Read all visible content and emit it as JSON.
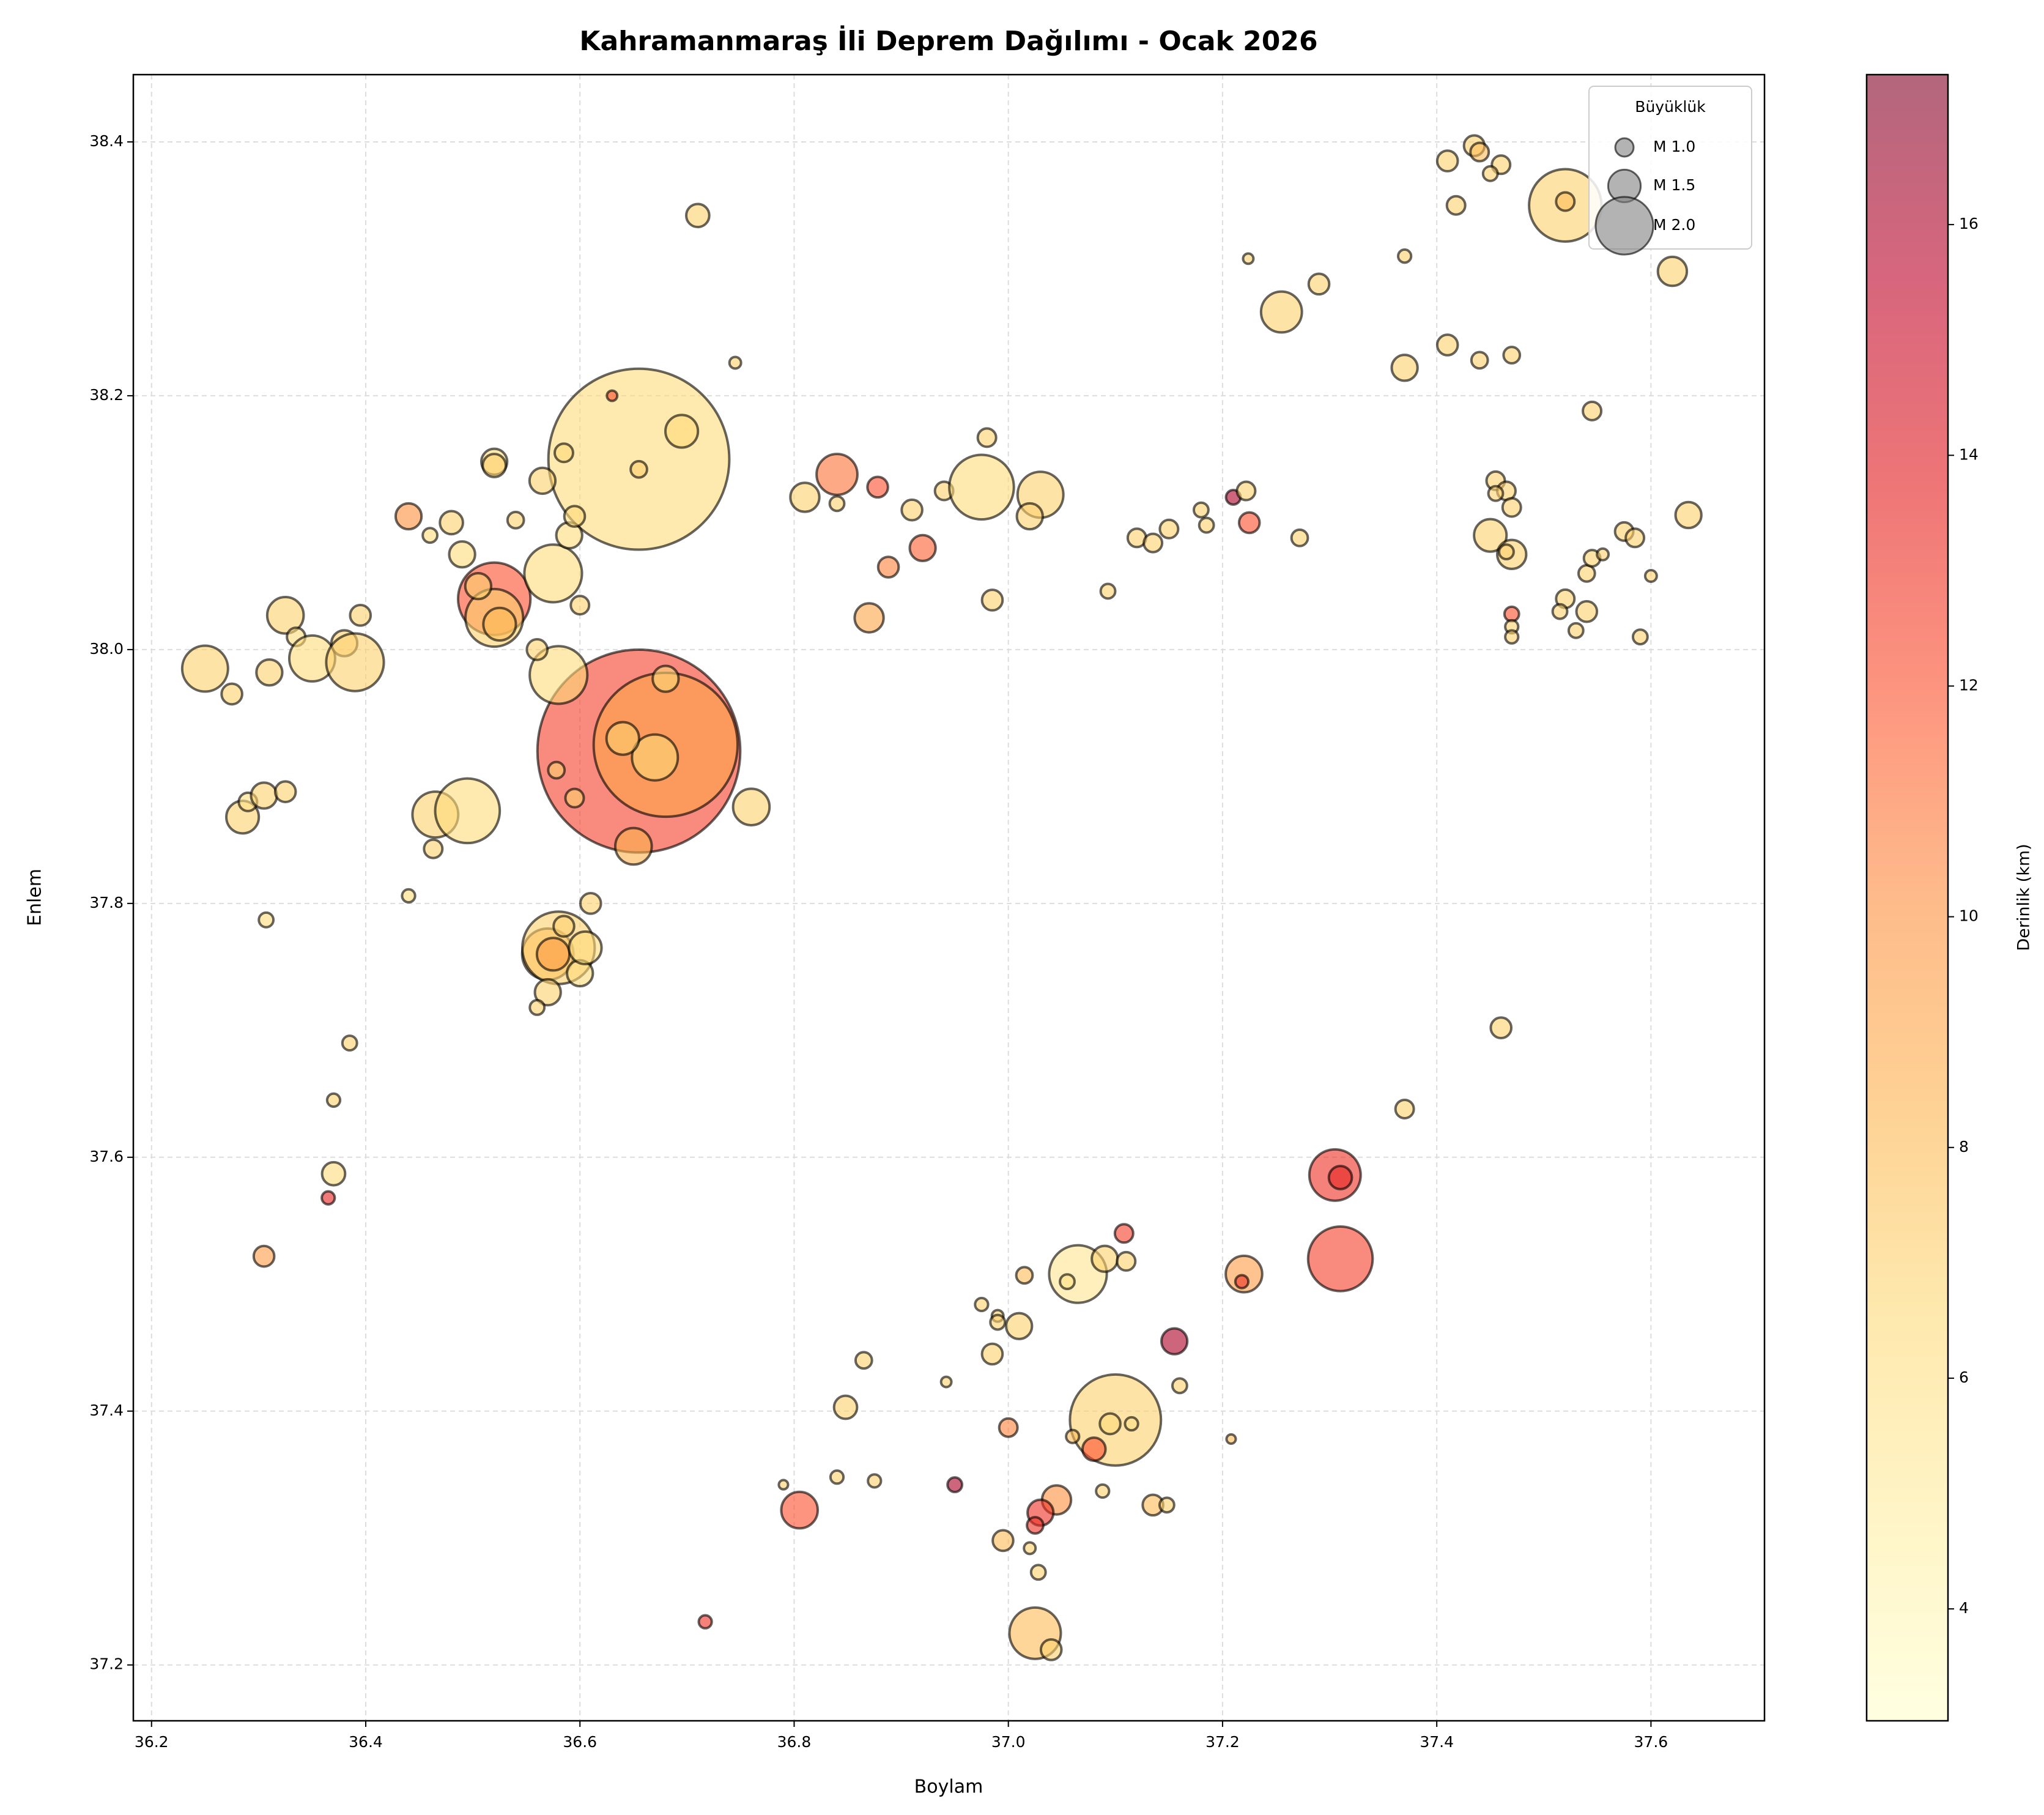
{
  "chart_data": {
    "type": "scatter",
    "title": "Kahramanmaraş İli Deprem Dağılımı - Ocak 2026",
    "xlabel": "Boylam",
    "ylabel": "Enlem",
    "xlim": [
      36.183,
      37.706
    ],
    "ylim": [
      37.156,
      38.453
    ],
    "xticks": [
      36.2,
      36.4,
      36.6,
      36.8,
      {
        "value": 37,
        "label": "37.0"
      },
      37.2,
      37.4,
      37.6
    ],
    "yticks": [
      37.2,
      37.4,
      37.6,
      37.8,
      {
        "value": 38,
        "label": "38.0"
      },
      38.2,
      38.4
    ],
    "grid": true,
    "x": [
      36.655,
      36.655,
      36.68,
      36.67,
      36.64,
      36.68,
      36.65,
      36.52,
      36.52,
      36.525,
      36.505,
      36.58,
      36.575,
      36.49,
      36.44,
      36.48,
      36.52,
      36.52,
      36.565,
      36.585,
      36.59,
      36.595,
      36.6,
      36.56,
      36.46,
      36.54,
      36.25,
      36.275,
      36.31,
      36.325,
      36.335,
      36.35,
      36.38,
      36.39,
      36.395,
      36.285,
      36.29,
      36.305,
      36.325,
      36.465,
      36.495,
      36.463,
      36.578,
      36.595,
      36.76,
      36.44,
      36.307,
      36.57,
      36.58,
      36.575,
      36.6,
      36.57,
      36.56,
      36.61,
      36.605,
      36.585,
      36.385,
      36.37,
      36.37,
      36.365,
      36.305,
      36.71,
      36.745,
      36.695,
      36.655,
      36.63,
      36.81,
      36.84,
      36.84,
      36.878,
      36.91,
      36.92,
      36.888,
      36.87,
      36.94,
      36.975,
      36.98,
      37.03,
      37.02,
      36.985,
      37.093,
      37.12,
      37.135,
      37.15,
      37.18,
      37.185,
      37.21,
      37.222,
      37.225,
      37.272,
      37.224,
      37.255,
      37.29,
      37.37,
      37.37,
      37.41,
      37.44,
      37.47,
      37.41,
      37.435,
      37.44,
      37.46,
      37.45,
      37.418,
      37.52,
      37.52,
      37.62,
      37.545,
      37.455,
      37.465,
      37.47,
      37.455,
      37.45,
      37.47,
      37.465,
      37.47,
      37.47,
      37.47,
      37.52,
      37.515,
      37.54,
      37.53,
      37.54,
      37.545,
      37.555,
      37.575,
      37.585,
      37.635,
      37.6,
      37.59,
      37.46,
      37.37,
      37.305,
      37.31,
      37.31,
      37.22,
      37.218,
      37.108,
      37.065,
      37.09,
      37.11,
      37.055,
      37.015,
      36.975,
      36.99,
      36.99,
      37.01,
      36.985,
      37.155,
      37.16,
      37.1,
      37.095,
      37.115,
      37.08,
      37.06,
      37.0,
      36.942,
      36.865,
      36.848,
      36.84,
      36.875,
      36.79,
      36.805,
      36.95,
      37.045,
      37.03,
      37.025,
      37.088,
      37.135,
      37.148,
      36.995,
      37.02,
      37.028,
      37.025,
      37.04,
      36.717,
      37.208
    ],
    "y": [
      38.15,
      37.92,
      37.925,
      37.915,
      37.93,
      37.977,
      37.845,
      38.04,
      38.025,
      38.02,
      38.05,
      37.98,
      38.06,
      38.075,
      38.105,
      38.1,
      38.148,
      38.145,
      38.133,
      38.155,
      38.09,
      38.105,
      38.035,
      38.0,
      38.09,
      38.102,
      37.985,
      37.965,
      37.982,
      38.027,
      38.01,
      37.993,
      38.005,
      37.99,
      38.027,
      37.868,
      37.88,
      37.885,
      37.888,
      37.87,
      37.873,
      37.843,
      37.905,
      37.883,
      37.876,
      37.806,
      37.787,
      37.76,
      37.765,
      37.76,
      37.745,
      37.73,
      37.718,
      37.8,
      37.765,
      37.782,
      37.69,
      37.645,
      37.587,
      37.568,
      37.522,
      38.342,
      38.226,
      38.172,
      38.142,
      38.2,
      38.12,
      38.138,
      38.115,
      38.128,
      38.11,
      38.08,
      38.065,
      38.025,
      38.125,
      38.128,
      38.167,
      38.122,
      38.105,
      38.039,
      38.046,
      38.088,
      38.084,
      38.095,
      38.11,
      38.098,
      38.12,
      38.125,
      38.1,
      38.088,
      38.308,
      38.266,
      38.288,
      38.31,
      38.222,
      38.24,
      38.228,
      38.232,
      38.385,
      38.397,
      38.392,
      38.382,
      38.375,
      38.35,
      38.35,
      38.353,
      38.298,
      38.188,
      38.133,
      38.125,
      38.112,
      38.123,
      38.09,
      38.075,
      38.077,
      38.028,
      38.018,
      38.01,
      38.04,
      38.03,
      38.03,
      38.015,
      38.06,
      38.072,
      38.075,
      38.093,
      38.088,
      38.106,
      38.058,
      38.01,
      37.702,
      37.638,
      37.586,
      37.584,
      37.52,
      37.508,
      37.502,
      37.54,
      37.508,
      37.52,
      37.518,
      37.502,
      37.507,
      37.484,
      37.475,
      37.47,
      37.467,
      37.445,
      37.455,
      37.42,
      37.393,
      37.39,
      37.39,
      37.37,
      37.38,
      37.387,
      37.423,
      37.44,
      37.403,
      37.348,
      37.345,
      37.342,
      37.322,
      37.342,
      37.33,
      37.32,
      37.31,
      37.337,
      37.326,
      37.326,
      37.298,
      37.292,
      37.273,
      37.225,
      37.212,
      37.234,
      37.378
    ],
    "magnitude": [
      3.0,
      3.1,
      2.8,
      1.8,
      1.5,
      1.3,
      1.6,
      2.2,
      2.0,
      1.5,
      1.3,
      2.0,
      2.0,
      1.3,
      1.3,
      1.2,
      1.3,
      1.2,
      1.3,
      1.0,
      1.3,
      1.1,
      1.0,
      1.1,
      0.8,
      0.9,
      1.8,
      1.1,
      1.3,
      1.6,
      1.0,
      1.8,
      1.3,
      2.0,
      1.1,
      1.5,
      1.0,
      1.3,
      1.1,
      1.8,
      2.1,
      1.0,
      0.9,
      1.0,
      1.6,
      0.7,
      0.8,
      1.9,
      2.2,
      1.5,
      1.3,
      1.3,
      0.8,
      1.1,
      1.5,
      1.1,
      0.8,
      0.7,
      1.2,
      0.7,
      1.1,
      1.2,
      0.6,
      1.5,
      0.9,
      0.5,
      1.4,
      1.7,
      0.8,
      1.1,
      1.1,
      1.3,
      1.1,
      1.4,
      1.0,
      2.1,
      1.0,
      1.8,
      1.3,
      1.1,
      0.8,
      1.0,
      1.0,
      1.0,
      0.8,
      0.8,
      0.8,
      1.0,
      1.1,
      0.9,
      0.5,
      1.7,
      1.1,
      0.7,
      1.3,
      1.1,
      0.9,
      0.9,
      1.1,
      1.1,
      1.0,
      1.0,
      0.8,
      1.0,
      2.2,
      1.0,
      1.4,
      1.0,
      1.0,
      1.0,
      1.0,
      0.8,
      1.5,
      1.4,
      0.8,
      0.8,
      0.7,
      0.7,
      1.0,
      0.8,
      1.1,
      0.8,
      0.9,
      0.9,
      0.6,
      1.0,
      1.0,
      1.3,
      0.6,
      0.8,
      1.1,
      1.0,
      1.9,
      1.2,
      2.1,
      1.6,
      0.7,
      1.0,
      2.0,
      1.3,
      1.0,
      0.8,
      0.9,
      0.7,
      0.6,
      0.8,
      1.3,
      1.1,
      1.3,
      0.8,
      2.4,
      1.1,
      0.7,
      1.2,
      0.7,
      1.0,
      0.5,
      0.9,
      1.2,
      0.7,
      0.7,
      0.4,
      1.6,
      0.8,
      1.4,
      1.3,
      0.9,
      0.7,
      1.1,
      0.8,
      1.1,
      0.6,
      0.8,
      1.9,
      1.1,
      0.7,
      0.4
    ],
    "depth": [
      6.5,
      12.5,
      9,
      6.5,
      7,
      6.5,
      8.5,
      12,
      7,
      8,
      7,
      6.5,
      6.5,
      6.5,
      10,
      7,
      6.5,
      7,
      7,
      6.5,
      6.5,
      6.5,
      7,
      7,
      6.5,
      7,
      7,
      7,
      7,
      7,
      6.5,
      6.5,
      7,
      7,
      7,
      7,
      6,
      7,
      7,
      7,
      6.5,
      7,
      7,
      7,
      7,
      6.5,
      6.5,
      8.5,
      7,
      9.5,
      6.5,
      7,
      7,
      7,
      6.5,
      7,
      7,
      7,
      6.5,
      13.5,
      9.5,
      7,
      7,
      6.5,
      7,
      12,
      7,
      11,
      7,
      12,
      7,
      11.5,
      10.5,
      9,
      7,
      6.5,
      7,
      7,
      7,
      7,
      7,
      7,
      7,
      7,
      7,
      7,
      16,
      7,
      12,
      7,
      7,
      7,
      7,
      7,
      7,
      7,
      7,
      7,
      7,
      7,
      8,
      7,
      7,
      7,
      7,
      8,
      7,
      7,
      7,
      7,
      7,
      7,
      7,
      7,
      7,
      12,
      7,
      7,
      7,
      7,
      7,
      7,
      7,
      7,
      7,
      7,
      7,
      7,
      7,
      7,
      7,
      7,
      13,
      13.5,
      12.5,
      9.5,
      13,
      12.5,
      5.5,
      7,
      7,
      6,
      8,
      7,
      7,
      7,
      7,
      7,
      16,
      7,
      7,
      6.5,
      6,
      12,
      8,
      10.5,
      7,
      7,
      7,
      7,
      7,
      7,
      12,
      16,
      10,
      13,
      13,
      7,
      8,
      7,
      8,
      7,
      7,
      8,
      7,
      13,
      8
    ],
    "colorbar": {
      "label": "Derinlik (km)",
      "lim": [
        3.03,
        17.3
      ],
      "ticks": [
        4,
        6,
        8,
        10,
        12,
        14,
        16
      ],
      "cmap": "YlOrRd"
    },
    "legend": {
      "title": "Büyüklük",
      "entries": [
        {
          "label": "M 1.0",
          "size": 1.0
        },
        {
          "label": "M 1.5",
          "size": 1.5
        },
        {
          "label": "M 2.0",
          "size": 2.0
        }
      ]
    }
  }
}
